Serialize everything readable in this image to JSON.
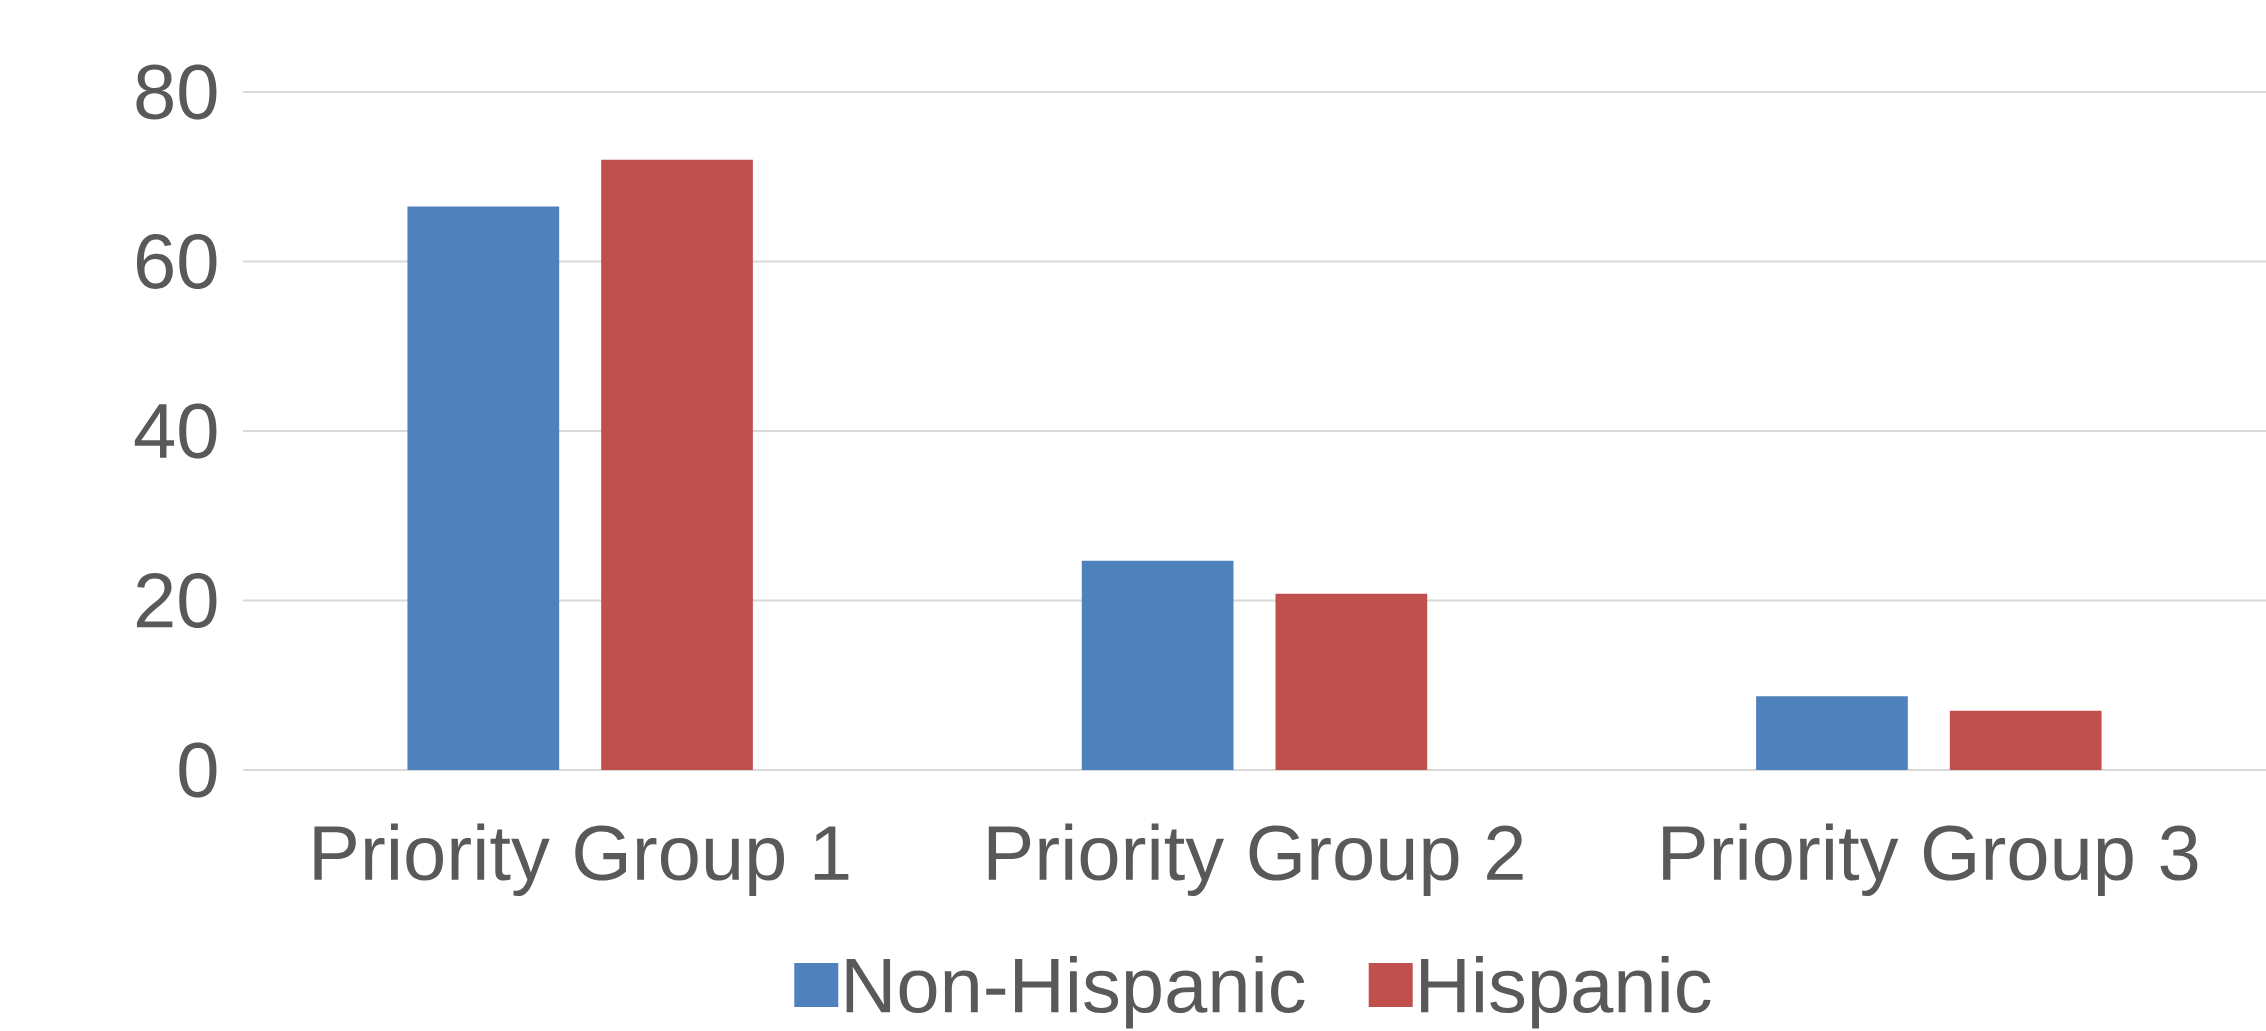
{
  "chart_data": {
    "type": "bar",
    "categories": [
      "Priority Group 1",
      "Priority Group 2",
      "Priority Group 3"
    ],
    "series": [
      {
        "name": "Non-Hispanic",
        "color": "#4f81bd",
        "values": [
          66.5,
          24.7,
          8.7
        ]
      },
      {
        "name": "Hispanic",
        "color": "#c0504d",
        "values": [
          72,
          20.8,
          7
        ]
      }
    ],
    "ylim": [
      0,
      80
    ],
    "yticks": [
      0,
      20,
      40,
      60,
      80
    ],
    "grid": "y",
    "legend": "bottom"
  }
}
